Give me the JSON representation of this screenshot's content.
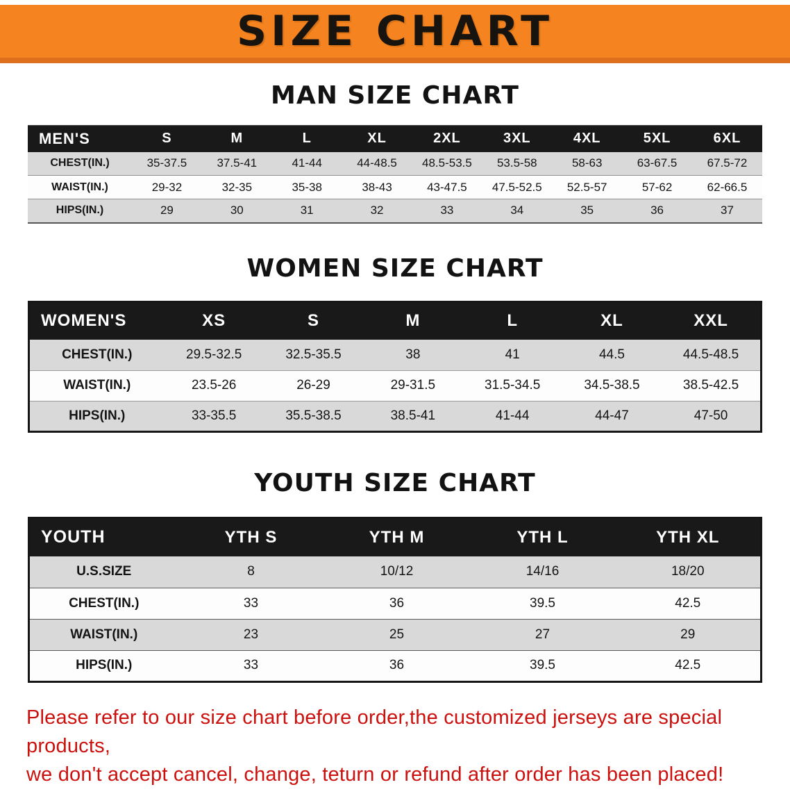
{
  "banner": {
    "title": "SIZE CHART",
    "background_color": "#f5831f",
    "border_color": "#dd6f1d",
    "text_color": "#17130e"
  },
  "sections": [
    {
      "id": "men",
      "title": "MAN SIZE CHART",
      "table": {
        "header": [
          "MEN'S",
          "S",
          "M",
          "L",
          "XL",
          "2XL",
          "3XL",
          "4XL",
          "5XL",
          "6XL"
        ],
        "rows": [
          [
            "CHEST(IN.)",
            "35-37.5",
            "37.5-41",
            "41-44",
            "44-48.5",
            "48.5-53.5",
            "53.5-58",
            "58-63",
            "63-67.5",
            "67.5-72"
          ],
          [
            "WAIST(IN.)",
            "29-32",
            "32-35",
            "35-38",
            "38-43",
            "43-47.5",
            "47.5-52.5",
            "52.5-57",
            "57-62",
            "62-66.5"
          ],
          [
            "HIPS(IN.)",
            "29",
            "30",
            "31",
            "32",
            "33",
            "34",
            "35",
            "36",
            "37"
          ]
        ]
      }
    },
    {
      "id": "women",
      "title": "WOMEN SIZE CHART",
      "table": {
        "header": [
          "WOMEN'S",
          "XS",
          "S",
          "M",
          "L",
          "XL",
          "XXL"
        ],
        "rows": [
          [
            "CHEST(IN.)",
            "29.5-32.5",
            "32.5-35.5",
            "38",
            "41",
            "44.5",
            "44.5-48.5"
          ],
          [
            "WAIST(IN.)",
            "23.5-26",
            "26-29",
            "29-31.5",
            "31.5-34.5",
            "34.5-38.5",
            "38.5-42.5"
          ],
          [
            "HIPS(IN.)",
            "33-35.5",
            "35.5-38.5",
            "38.5-41",
            "41-44",
            "44-47",
            "47-50"
          ]
        ]
      }
    },
    {
      "id": "youth",
      "title": "YOUTH SIZE CHART",
      "table": {
        "header": [
          "YOUTH",
          "YTH S",
          "YTH M",
          "YTH L",
          "YTH XL"
        ],
        "rows": [
          [
            "U.S.SIZE",
            "8",
            "10/12",
            "14/16",
            "18/20"
          ],
          [
            "CHEST(IN.)",
            "33",
            "36",
            "39.5",
            "42.5"
          ],
          [
            "WAIST(IN.)",
            "23",
            "25",
            "27",
            "29"
          ],
          [
            "HIPS(IN.)",
            "33",
            "36",
            "39.5",
            "42.5"
          ]
        ]
      }
    }
  ],
  "footer": {
    "line1": "Please refer to our size chart before order,the customized jerseys are special products,",
    "line2": "we don't accept cancel, change, teturn or refund after order has been placed!",
    "text_color": "#cc100d"
  }
}
